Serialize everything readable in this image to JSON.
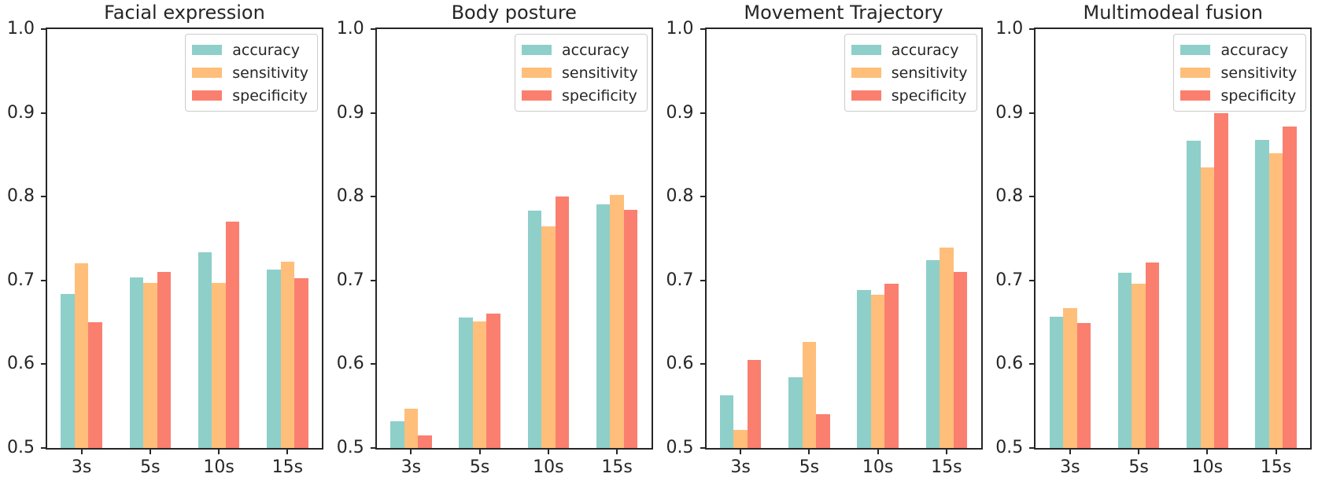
{
  "figure": {
    "background": "#ffffff"
  },
  "colors": {
    "accuracy": "#8ECFC9",
    "sensitivity": "#FFBE7A",
    "specificity": "#FA7F6F",
    "axis": "#262626",
    "legend_border": "#cccccc"
  },
  "legend": {
    "labels": [
      "accuracy",
      "sensitivity",
      "specificity"
    ],
    "position": "upper right"
  },
  "chart_data": [
    {
      "type": "bar",
      "title": "Facial expression",
      "categories": [
        "3s",
        "5s",
        "10s",
        "15s"
      ],
      "series": [
        {
          "name": "accuracy",
          "values": [
            0.684,
            0.704,
            0.734,
            0.713
          ]
        },
        {
          "name": "sensitivity",
          "values": [
            0.72,
            0.697,
            0.697,
            0.722
          ]
        },
        {
          "name": "specificity",
          "values": [
            0.65,
            0.71,
            0.77,
            0.703
          ]
        }
      ],
      "xlabel": "",
      "ylabel": "",
      "ylim": [
        0.5,
        1.0
      ],
      "yticks": [
        0.5,
        0.6,
        0.7,
        0.8,
        0.9,
        1.0
      ],
      "grid": false,
      "legend_position": "upper right"
    },
    {
      "type": "bar",
      "title": "Body posture",
      "categories": [
        "3s",
        "5s",
        "10s",
        "15s"
      ],
      "series": [
        {
          "name": "accuracy",
          "values": [
            0.532,
            0.656,
            0.783,
            0.791
          ]
        },
        {
          "name": "sensitivity",
          "values": [
            0.547,
            0.651,
            0.765,
            0.802
          ]
        },
        {
          "name": "specificity",
          "values": [
            0.515,
            0.66,
            0.8,
            0.784
          ]
        }
      ],
      "xlabel": "",
      "ylabel": "",
      "ylim": [
        0.5,
        1.0
      ],
      "yticks": [
        0.5,
        0.6,
        0.7,
        0.8,
        0.9,
        1.0
      ],
      "grid": false,
      "legend_position": "upper right"
    },
    {
      "type": "bar",
      "title": "Movement Trajectory",
      "categories": [
        "3s",
        "5s",
        "10s",
        "15s"
      ],
      "series": [
        {
          "name": "accuracy",
          "values": [
            0.563,
            0.584,
            0.689,
            0.724
          ]
        },
        {
          "name": "sensitivity",
          "values": [
            0.522,
            0.627,
            0.683,
            0.739
          ]
        },
        {
          "name": "specificity",
          "values": [
            0.605,
            0.54,
            0.696,
            0.71
          ]
        }
      ],
      "xlabel": "",
      "ylabel": "",
      "ylim": [
        0.5,
        1.0
      ],
      "yticks": [
        0.5,
        0.6,
        0.7,
        0.8,
        0.9,
        1.0
      ],
      "grid": false,
      "legend_position": "upper right"
    },
    {
      "type": "bar",
      "title": "Multimodeal fusion",
      "categories": [
        "3s",
        "5s",
        "10s",
        "15s"
      ],
      "series": [
        {
          "name": "accuracy",
          "values": [
            0.657,
            0.709,
            0.867,
            0.868
          ]
        },
        {
          "name": "sensitivity",
          "values": [
            0.667,
            0.696,
            0.835,
            0.852
          ]
        },
        {
          "name": "specificity",
          "values": [
            0.649,
            0.721,
            0.9,
            0.884
          ]
        }
      ],
      "xlabel": "",
      "ylabel": "",
      "ylim": [
        0.5,
        1.0
      ],
      "yticks": [
        0.5,
        0.6,
        0.7,
        0.8,
        0.9,
        1.0
      ],
      "grid": false,
      "legend_position": "upper right"
    }
  ]
}
